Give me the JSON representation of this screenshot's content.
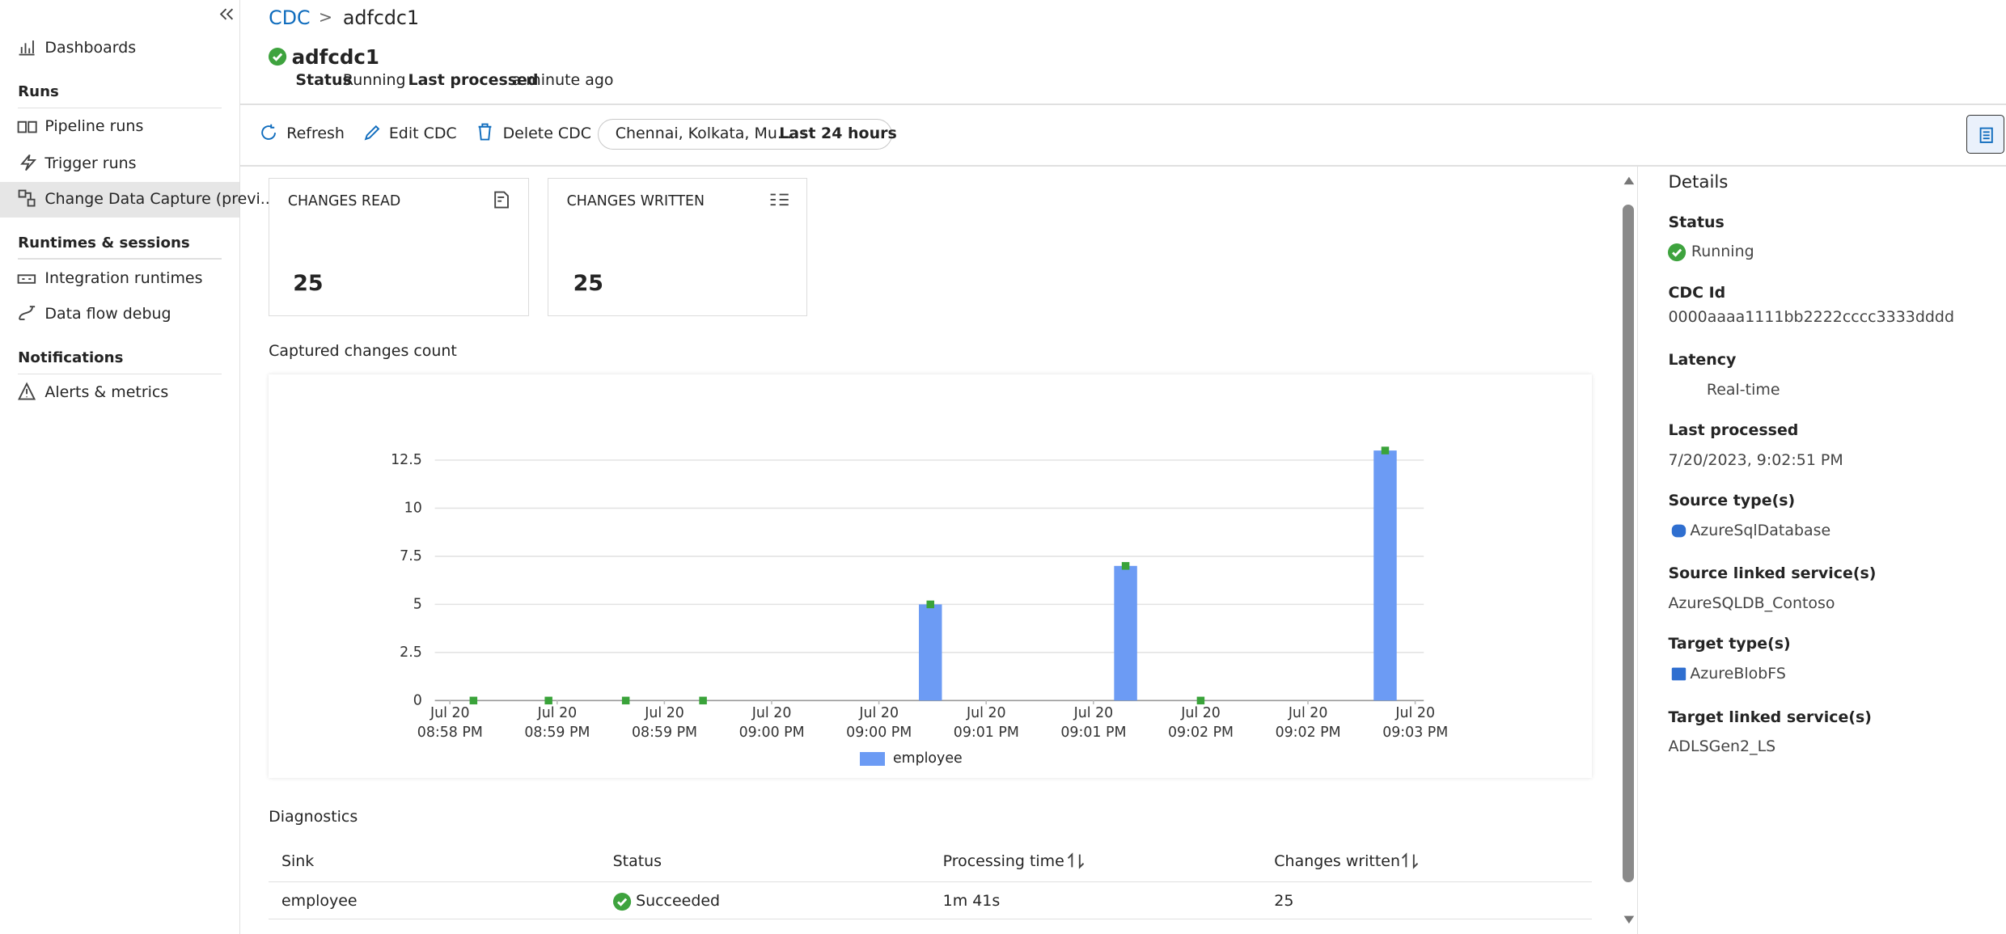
{
  "sidebar": {
    "top_item": "Dashboards",
    "sections": [
      {
        "title": "Runs",
        "items": [
          "Pipeline runs",
          "Trigger runs",
          "Change Data Capture (previ..."
        ]
      },
      {
        "title": "Runtimes & sessions",
        "items": [
          "Integration runtimes",
          "Data flow debug"
        ]
      },
      {
        "title": "Notifications",
        "items": [
          "Alerts & metrics"
        ]
      }
    ]
  },
  "breadcrumb": {
    "root": "CDC",
    "separator": ">",
    "current": "adfcdc1"
  },
  "header": {
    "title": "adfcdc1",
    "status_label": "Status",
    "status": "Running",
    "last_processed_label": "Last processed",
    "last_processed": "a minute ago"
  },
  "toolbar": {
    "refresh": "Refresh",
    "edit": "Edit CDC",
    "delete": "Delete CDC",
    "filter_regions": "Chennai, Kolkata, Mu...  :",
    "filter_range": "Last 24 hours"
  },
  "cards": [
    {
      "label": "CHANGES READ",
      "value": 25
    },
    {
      "label": "CHANGES WRITTEN",
      "value": 25
    }
  ],
  "chart_data": {
    "type": "bar",
    "title": "Captured changes count",
    "x": [
      1258.61,
      1258.96,
      1259.32,
      1259.68,
      1260.74,
      1261.65,
      1262.0,
      1262.86
    ],
    "series": [
      {
        "name": "employee",
        "color": "#6c9bf4",
        "values": [
          0,
          0,
          0,
          0,
          5,
          7,
          0,
          13
        ]
      }
    ],
    "marker_color": "#3aa33a",
    "xlim": [
      1258.43,
      1263.04
    ],
    "xticks": [
      {
        "value": 1258.5,
        "label": "Jul 20\n08:58 PM"
      },
      {
        "value": 1259,
        "label": "Jul 20\n08:59 PM"
      },
      {
        "value": 1259.5,
        "label": "Jul 20\n08:59 PM"
      },
      {
        "value": 1260,
        "label": "Jul 20\n09:00 PM"
      },
      {
        "value": 1260.5,
        "label": "Jul 20\n09:00 PM"
      },
      {
        "value": 1261,
        "label": "Jul 20\n09:01 PM"
      },
      {
        "value": 1261.5,
        "label": "Jul 20\n09:01 PM"
      },
      {
        "value": 1262,
        "label": "Jul 20\n09:02 PM"
      },
      {
        "value": 1262.5,
        "label": "Jul 20\n09:02 PM"
      },
      {
        "value": 1263,
        "label": "Jul 20\n09:03 PM"
      }
    ],
    "ylim": [
      0,
      13
    ],
    "yticks": [
      0,
      2.5,
      5,
      7.5,
      10,
      12.5
    ],
    "grid": true,
    "legend": "bottom"
  },
  "diagnostics": {
    "title": "Diagnostics",
    "columns": [
      "Sink",
      "Status",
      "Processing time",
      "Changes written"
    ],
    "rows": [
      [
        "employee",
        "Succeeded",
        "1m 41s",
        25
      ]
    ]
  },
  "details": {
    "title": "Details",
    "fields": [
      {
        "label": "Status",
        "value": "Running"
      },
      {
        "label": "CDC Id",
        "value": "0000aaaa1111bb2222cccc3333dddd"
      },
      {
        "label": "Latency",
        "value": "Real-time"
      },
      {
        "label": "Last processed",
        "value": "7/20/2023, 9:02:51 PM"
      },
      {
        "label": "Source type(s)",
        "value": "AzureSqlDatabase"
      },
      {
        "label": "Source linked service(s)",
        "value": "AzureSQLDB_Contoso"
      },
      {
        "label": "Target type(s)",
        "value": "AzureBlobFS"
      },
      {
        "label": "Target linked service(s)",
        "value": "ADLSGen2_LS"
      }
    ]
  }
}
